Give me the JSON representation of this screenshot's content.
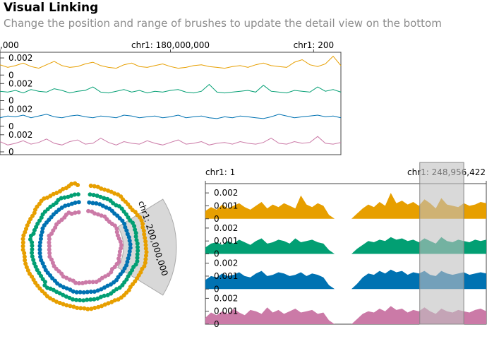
{
  "header": {
    "title": "Visual Linking",
    "subtitle": "Change the position and range of brushes to update the detail view on the bottom"
  },
  "colors": {
    "series": [
      "#E79F00",
      "#029F73",
      "#0072B2",
      "#CB7AA7"
    ],
    "brush": "#c8c8c8"
  },
  "chart_data": [
    {
      "type": "line",
      "view": "top-overview",
      "chromosome": "chr1",
      "x_ticks": [
        {
          "label": ",000,000",
          "value": 130000000
        },
        {
          "label": "chr1: 180,000,000",
          "value": 180000000
        },
        {
          "label": "chr1: 200",
          "value": 222000000
        }
      ],
      "xlim": [
        130000000,
        230000000
      ],
      "ylim": [
        0,
        0.0025
      ],
      "y_tick_labels": [
        "0.002",
        "0"
      ],
      "series_count": 4,
      "series": [
        {
          "values": [
            0.0012,
            0.0009,
            0.0011,
            0.0014,
            0.001,
            0.0008,
            0.0012,
            0.0016,
            0.0011,
            0.0009,
            0.001,
            0.0013,
            0.0015,
            0.0011,
            0.0009,
            0.0008,
            0.0012,
            0.0014,
            0.001,
            0.0009,
            0.0011,
            0.0013,
            0.001,
            0.0008,
            0.0009,
            0.0011,
            0.0012,
            0.001,
            0.0009,
            0.0008,
            0.001,
            0.0011,
            0.0009,
            0.0012,
            0.0014,
            0.0011,
            0.001,
            0.0009,
            0.0015,
            0.0018,
            0.0012,
            0.001,
            0.0013,
            0.0022,
            0.0011
          ]
        },
        {
          "values": [
            0.0011,
            0.001,
            0.0012,
            0.0009,
            0.0013,
            0.0011,
            0.001,
            0.0014,
            0.0012,
            0.0009,
            0.0011,
            0.0012,
            0.0016,
            0.001,
            0.0009,
            0.0011,
            0.0013,
            0.001,
            0.0012,
            0.0009,
            0.0011,
            0.001,
            0.0012,
            0.0013,
            0.001,
            0.0009,
            0.0011,
            0.0019,
            0.001,
            0.0009,
            0.001,
            0.0011,
            0.0012,
            0.001,
            0.0018,
            0.0011,
            0.001,
            0.0009,
            0.0012,
            0.0011,
            0.001,
            0.0016,
            0.0011,
            0.0013,
            0.001
          ]
        },
        {
          "values": [
            0.001,
            0.0012,
            0.0011,
            0.0013,
            0.001,
            0.0012,
            0.0014,
            0.0011,
            0.001,
            0.0012,
            0.0013,
            0.0011,
            0.001,
            0.0012,
            0.0011,
            0.001,
            0.0013,
            0.0012,
            0.001,
            0.0011,
            0.0012,
            0.001,
            0.0011,
            0.0013,
            0.001,
            0.0011,
            0.0012,
            0.001,
            0.0009,
            0.0011,
            0.001,
            0.0012,
            0.0011,
            0.001,
            0.0009,
            0.0011,
            0.0014,
            0.0012,
            0.001,
            0.0011,
            0.0012,
            0.0013,
            0.0011,
            0.0012,
            0.001
          ]
        },
        {
          "values": [
            0.0012,
            0.0008,
            0.001,
            0.0013,
            0.0009,
            0.0011,
            0.0015,
            0.001,
            0.0008,
            0.0012,
            0.0014,
            0.0009,
            0.001,
            0.0016,
            0.0011,
            0.0008,
            0.0012,
            0.001,
            0.0009,
            0.0013,
            0.001,
            0.0008,
            0.0011,
            0.0014,
            0.0009,
            0.001,
            0.0012,
            0.0008,
            0.001,
            0.0011,
            0.0009,
            0.0012,
            0.001,
            0.0009,
            0.0011,
            0.0016,
            0.001,
            0.0009,
            0.0012,
            0.001,
            0.0011,
            0.0018,
            0.001,
            0.0009,
            0.0011
          ]
        }
      ]
    },
    {
      "type": "circular-line",
      "view": "circular-overview",
      "brush_label": "chr1: 200,000,000",
      "series_count": 4
    },
    {
      "type": "area",
      "view": "bottom-detail",
      "x_ticks": [
        {
          "label": "chr1: 1",
          "value": 1
        },
        {
          "label": "chr1: 248,956,422",
          "value": 248956422
        }
      ],
      "xlim": [
        1,
        248956422
      ],
      "ylim": [
        0,
        0.0025
      ],
      "y_tick_labels": [
        "0.002",
        "0.001",
        "0"
      ],
      "brush_range": [
        190000000,
        229000000
      ],
      "gap_range": [
        121000000,
        143000000
      ],
      "series_count": 4,
      "series": [
        {
          "values": [
            0.0006,
            0.0009,
            0.0007,
            0.0011,
            0.0008,
            0.001,
            0.0012,
            0.0009,
            0.0007,
            0.001,
            0.0013,
            0.0008,
            0.0011,
            0.0009,
            0.0012,
            0.001,
            0.0008,
            0.0018,
            0.0011,
            0.0009,
            0.0012,
            0.001,
            0.0003,
            0,
            0,
            0,
            0,
            0.0004,
            0.0008,
            0.0011,
            0.0009,
            0.0013,
            0.001,
            0.002,
            0.0012,
            0.0014,
            0.0011,
            0.0013,
            0.001,
            0.0015,
            0.0012,
            0.0008,
            0.0016,
            0.0011,
            0.001,
            0.0009,
            0.0012,
            0.001,
            0.0011,
            0.0013,
            0.0012
          ]
        },
        {
          "values": [
            0.0005,
            0.0008,
            0.0009,
            0.0007,
            0.001,
            0.0008,
            0.0011,
            0.0009,
            0.0007,
            0.001,
            0.0012,
            0.0008,
            0.0009,
            0.0011,
            0.001,
            0.0008,
            0.0012,
            0.0009,
            0.001,
            0.0011,
            0.0009,
            0.0008,
            0.0003,
            0,
            0,
            0,
            0,
            0.0004,
            0.0007,
            0.001,
            0.0009,
            0.0011,
            0.001,
            0.0013,
            0.0011,
            0.0012,
            0.001,
            0.0011,
            0.0009,
            0.0012,
            0.001,
            0.0008,
            0.0013,
            0.001,
            0.0009,
            0.0011,
            0.001,
            0.0009,
            0.0011,
            0.001,
            0.0011
          ]
        },
        {
          "values": [
            0.0007,
            0.001,
            0.0009,
            0.0012,
            0.001,
            0.0011,
            0.0013,
            0.001,
            0.0009,
            0.0012,
            0.0014,
            0.001,
            0.0011,
            0.0013,
            0.0012,
            0.001,
            0.0011,
            0.0013,
            0.001,
            0.0012,
            0.0011,
            0.0009,
            0.0003,
            0,
            0,
            0,
            0,
            0.0004,
            0.0009,
            0.0012,
            0.0011,
            0.0014,
            0.0012,
            0.0015,
            0.0013,
            0.0014,
            0.0011,
            0.0013,
            0.0012,
            0.0014,
            0.0011,
            0.001,
            0.0014,
            0.0012,
            0.0011,
            0.0012,
            0.0013,
            0.0011,
            0.0012,
            0.0013,
            0.0012
          ]
        },
        {
          "values": [
            0.0005,
            0.0009,
            0.0007,
            0.001,
            0.0008,
            0.0012,
            0.0009,
            0.0007,
            0.0011,
            0.001,
            0.0008,
            0.0013,
            0.0009,
            0.0011,
            0.0008,
            0.001,
            0.0012,
            0.0009,
            0.001,
            0.0011,
            0.0008,
            0.0009,
            0.0003,
            0,
            0,
            0,
            0,
            0.0004,
            0.0008,
            0.001,
            0.0009,
            0.0012,
            0.001,
            0.0014,
            0.0011,
            0.0012,
            0.0009,
            0.0011,
            0.001,
            0.0013,
            0.001,
            0.0008,
            0.0012,
            0.001,
            0.0009,
            0.0011,
            0.001,
            0.0009,
            0.0011,
            0.0012,
            0.001
          ]
        }
      ]
    }
  ]
}
